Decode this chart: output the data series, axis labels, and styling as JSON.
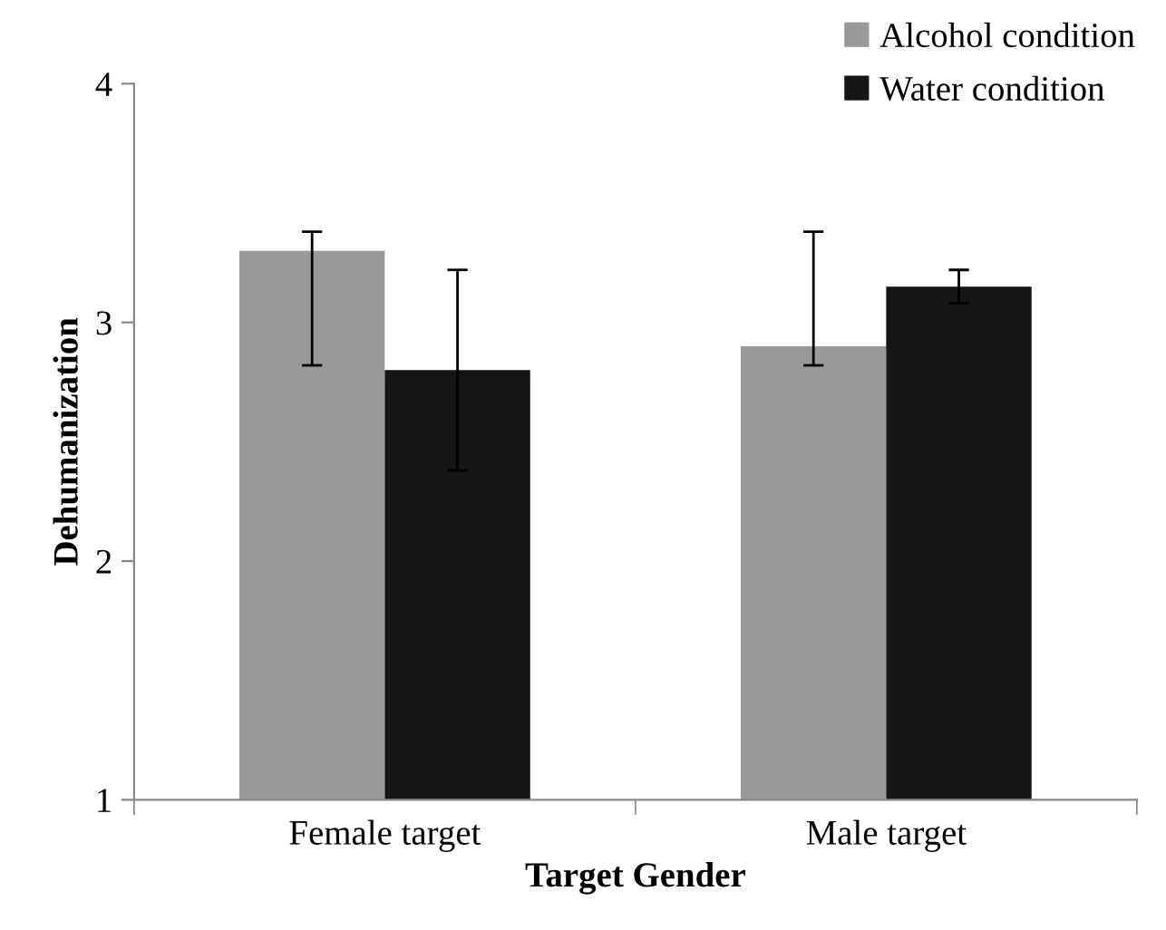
{
  "chart_data": {
    "type": "bar",
    "xlabel": "Target Gender",
    "ylabel": "Dehumanization",
    "categories": [
      "Female target",
      "Male target"
    ],
    "series": [
      {
        "name": "Alcohol condition",
        "color": "#999999",
        "values": [
          3.3,
          2.9
        ],
        "errors": [
          [
            2.82,
            3.38
          ],
          [
            2.82,
            3.38
          ]
        ]
      },
      {
        "name": "Water condition",
        "color": "#161616",
        "values": [
          2.8,
          3.15
        ],
        "errors": [
          [
            2.38,
            3.22
          ],
          [
            3.08,
            3.22
          ]
        ]
      }
    ],
    "ylim": [
      1,
      4
    ],
    "yticks": [
      1,
      2,
      3,
      4
    ],
    "grid": false,
    "legend": "top right"
  }
}
